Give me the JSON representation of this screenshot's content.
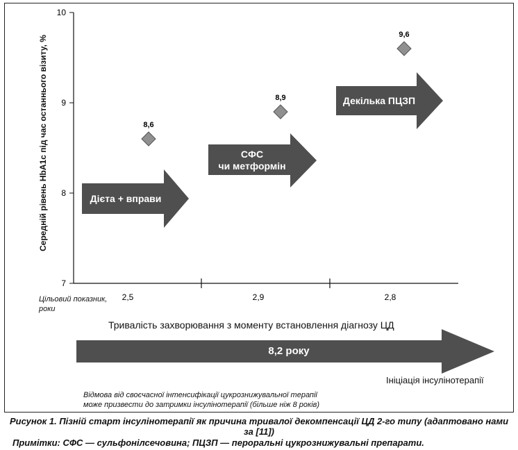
{
  "chart_data": {
    "type": "scatter",
    "ylabel": "Середній рівень HbA1c під час останнього візиту, %",
    "ylim": [
      7,
      10
    ],
    "yticks": [
      "7",
      "8",
      "9",
      "10"
    ],
    "xlabel": "Тривалість захворювання з моменту встановлення діагнозу ЦД",
    "x_target_label": "Цільовий показник, роки",
    "categories": [
      "2,5",
      "2,9",
      "2,8"
    ],
    "points": [
      {
        "x": "2,5",
        "y": 8.6,
        "label": "8,6"
      },
      {
        "x": "2,9",
        "y": 8.9,
        "label": "8,9"
      },
      {
        "x": "2,8",
        "y": 9.6,
        "label": "9,6"
      }
    ],
    "stage_arrows": [
      {
        "label": "Дієта + вправи"
      },
      {
        "label": "СФС чи метформін"
      },
      {
        "label": "Декілька ПЦЗП"
      }
    ],
    "timeline": {
      "label": "8,2 року",
      "end_label": "Ініціація інсулінотерапії"
    },
    "note_lines": [
      "Відмова від своєчасної інтенсифікації цукрознижувальної терапії",
      "може призвести до затримки інсулінотерапії (більше ніж 8 років)"
    ],
    "colors": {
      "arrow": "#4f4f4f",
      "marker": "#909090",
      "text": "#111111"
    }
  },
  "caption": "Рисунок 1. Пізній старт інсулінотерапії як причина тривалої декомпенсації ЦД 2-го типу (адаптовано нами за [11])",
  "note": "Примітки: СФС — сульфонілсечовина; ПЦЗП — пероральні цукрознижувальні препарати."
}
